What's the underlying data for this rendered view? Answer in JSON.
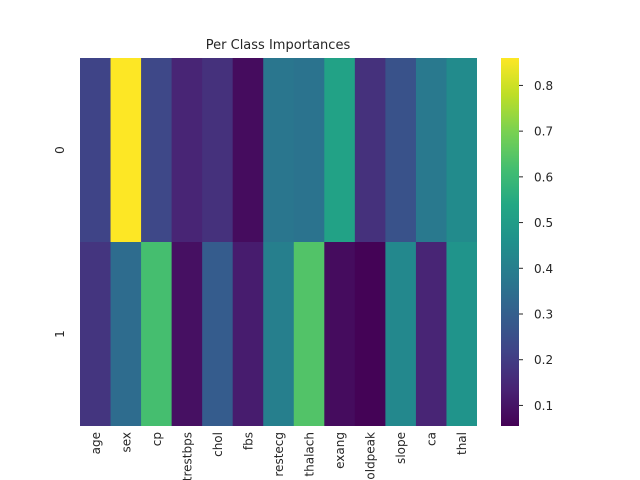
{
  "chart_data": {
    "type": "heatmap",
    "title": "Per Class Importances",
    "xlabel": "",
    "ylabel": "",
    "x_categories": [
      "age",
      "sex",
      "cp",
      "trestbps",
      "chol",
      "fbs",
      "restecg",
      "thalach",
      "exang",
      "oldpeak",
      "slope",
      "ca",
      "thal"
    ],
    "y_categories": [
      "0",
      "1"
    ],
    "values": [
      [
        0.22,
        0.86,
        0.23,
        0.14,
        0.17,
        0.08,
        0.37,
        0.36,
        0.52,
        0.17,
        0.26,
        0.38,
        0.44
      ],
      [
        0.18,
        0.34,
        0.62,
        0.09,
        0.29,
        0.12,
        0.4,
        0.64,
        0.08,
        0.06,
        0.43,
        0.14,
        0.47
      ]
    ],
    "colorbar": {
      "min": 0.055,
      "max": 0.86,
      "ticks": [
        0.1,
        0.2,
        0.3,
        0.4,
        0.5,
        0.6,
        0.7,
        0.8
      ],
      "colormap": "viridis"
    }
  }
}
